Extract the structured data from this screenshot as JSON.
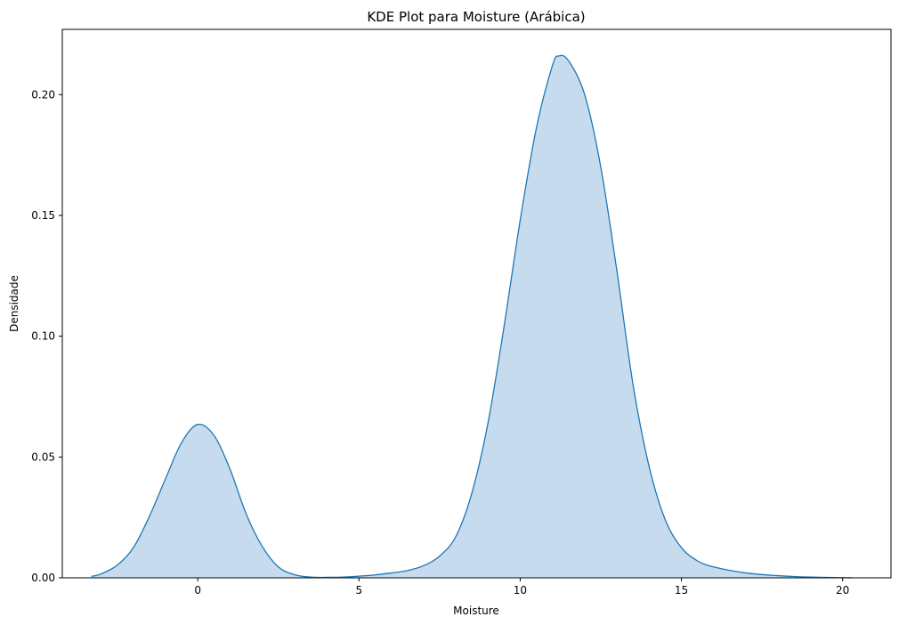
{
  "chart_data": {
    "type": "area",
    "title": "KDE Plot para Moisture (Arábica)",
    "xlabel": "Moisture",
    "ylabel": "Densidade",
    "xlim": [
      -4.2,
      21.5
    ],
    "ylim": [
      0,
      0.227
    ],
    "xticks": [
      0,
      5,
      10,
      15,
      20
    ],
    "xtick_labels": [
      "0",
      "5",
      "10",
      "15",
      "20"
    ],
    "yticks": [
      0,
      0.05,
      0.1,
      0.15,
      0.2
    ],
    "ytick_labels": [
      "0.00",
      "0.05",
      "0.10",
      "0.15",
      "0.20"
    ],
    "grid": false,
    "legend": "none",
    "line_color": "#1f77b4",
    "fill_color": "#c6dcee",
    "series": [
      {
        "x": [
          -3.3,
          -3.0,
          -2.5,
          -2.0,
          -1.5,
          -1.0,
          -0.5,
          0.0,
          0.5,
          1.0,
          1.5,
          2.0,
          2.5,
          3.0,
          3.5,
          4.0,
          4.5,
          5.0,
          5.5,
          6.0,
          6.5,
          7.0,
          7.5,
          8.0,
          8.5,
          9.0,
          9.5,
          10.0,
          10.5,
          11.0,
          11.2,
          11.5,
          12.0,
          12.5,
          13.0,
          13.5,
          14.0,
          14.5,
          15.0,
          15.5,
          16.0,
          17.0,
          18.0,
          19.0,
          20.0,
          20.3
        ],
        "y": [
          0.0006,
          0.0016,
          0.0052,
          0.0124,
          0.0254,
          0.041,
          0.056,
          0.0635,
          0.059,
          0.045,
          0.0265,
          0.013,
          0.0045,
          0.0013,
          0.0003,
          0.0002,
          0.0003,
          0.0007,
          0.0012,
          0.002,
          0.003,
          0.005,
          0.009,
          0.017,
          0.035,
          0.064,
          0.104,
          0.148,
          0.186,
          0.212,
          0.216,
          0.214,
          0.2,
          0.17,
          0.127,
          0.08,
          0.046,
          0.024,
          0.0125,
          0.007,
          0.0045,
          0.002,
          0.0009,
          0.0003,
          0.0001,
          0.0
        ]
      }
    ]
  }
}
